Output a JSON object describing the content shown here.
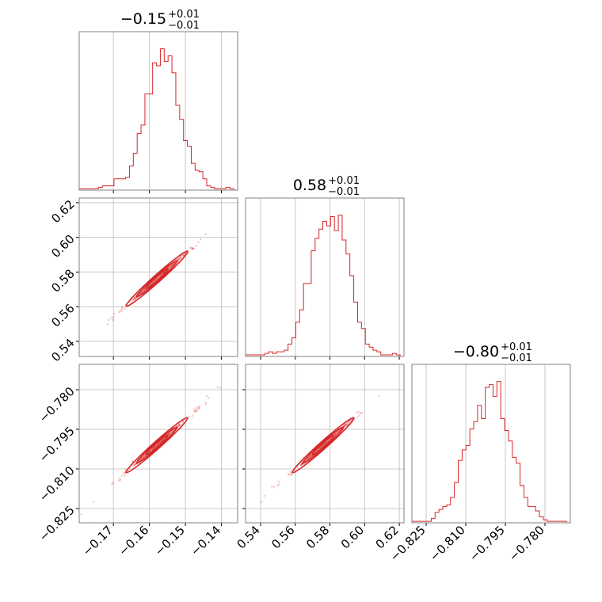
{
  "chart_data": {
    "type": "corner",
    "color": "#d62728",
    "grid": true,
    "titles": [
      {
        "main": "−0.15",
        "sup": "+0.01",
        "sub": "−0.01"
      },
      {
        "main": "0.58",
        "sup": "+0.01",
        "sub": "−0.01"
      },
      {
        "main": "−0.80",
        "sup": "+0.01",
        "sub": "−0.01"
      }
    ],
    "params": [
      {
        "range": [
          -0.1795,
          -0.1355
        ],
        "ticks": [
          -0.17,
          -0.16,
          -0.15,
          -0.14
        ],
        "tick_labels": [
          "−0.17",
          "−0.16",
          "−0.15",
          "−0.14"
        ]
      },
      {
        "range": [
          0.5313,
          0.6227
        ],
        "ticks": [
          0.54,
          0.56,
          0.58,
          0.6,
          0.62
        ],
        "tick_labels": [
          "0.54",
          "0.56",
          "0.58",
          "0.60",
          "0.62"
        ]
      },
      {
        "range": [
          -0.8304,
          -0.7704
        ],
        "ticks": [
          -0.825,
          -0.81,
          -0.795,
          -0.78
        ],
        "tick_labels": [
          "−0.825",
          "−0.810",
          "−0.795",
          "−0.780"
        ]
      }
    ],
    "histograms": [
      {
        "edges_start": -0.1795,
        "edges_end": -0.1355,
        "counts": [
          1,
          1,
          1,
          1,
          1,
          2,
          3,
          3,
          3,
          8,
          8,
          8,
          9,
          17,
          26,
          40,
          46,
          68,
          68,
          90,
          88,
          100,
          91,
          95,
          83,
          60,
          50,
          35,
          31,
          19,
          14,
          13,
          8,
          3,
          2,
          1,
          1,
          1,
          2,
          1,
          0
        ]
      },
      {
        "edges_start": 0.5313,
        "edges_end": 0.6227,
        "counts": [
          1,
          1,
          1,
          1,
          1,
          2,
          3,
          2,
          3,
          3,
          4,
          8,
          12,
          22,
          30,
          47,
          47,
          68,
          76,
          82,
          87,
          84,
          90,
          81,
          91,
          75,
          66,
          52,
          35,
          22,
          18,
          8,
          6,
          4,
          3,
          1,
          1,
          1,
          2,
          1,
          0
        ]
      },
      {
        "edges_start": -0.8304,
        "edges_end": -0.7704,
        "counts": [
          1,
          1,
          1,
          1,
          1,
          3,
          7,
          9,
          11,
          12,
          17,
          27,
          42,
          49,
          52,
          63,
          68,
          79,
          70,
          91,
          93,
          85,
          95,
          70,
          62,
          55,
          44,
          40,
          25,
          17,
          11,
          11,
          8,
          4,
          2,
          1,
          1,
          1,
          1,
          1,
          0
        ]
      }
    ],
    "correlation": "strong positive linear correlation between all parameter pairs"
  }
}
